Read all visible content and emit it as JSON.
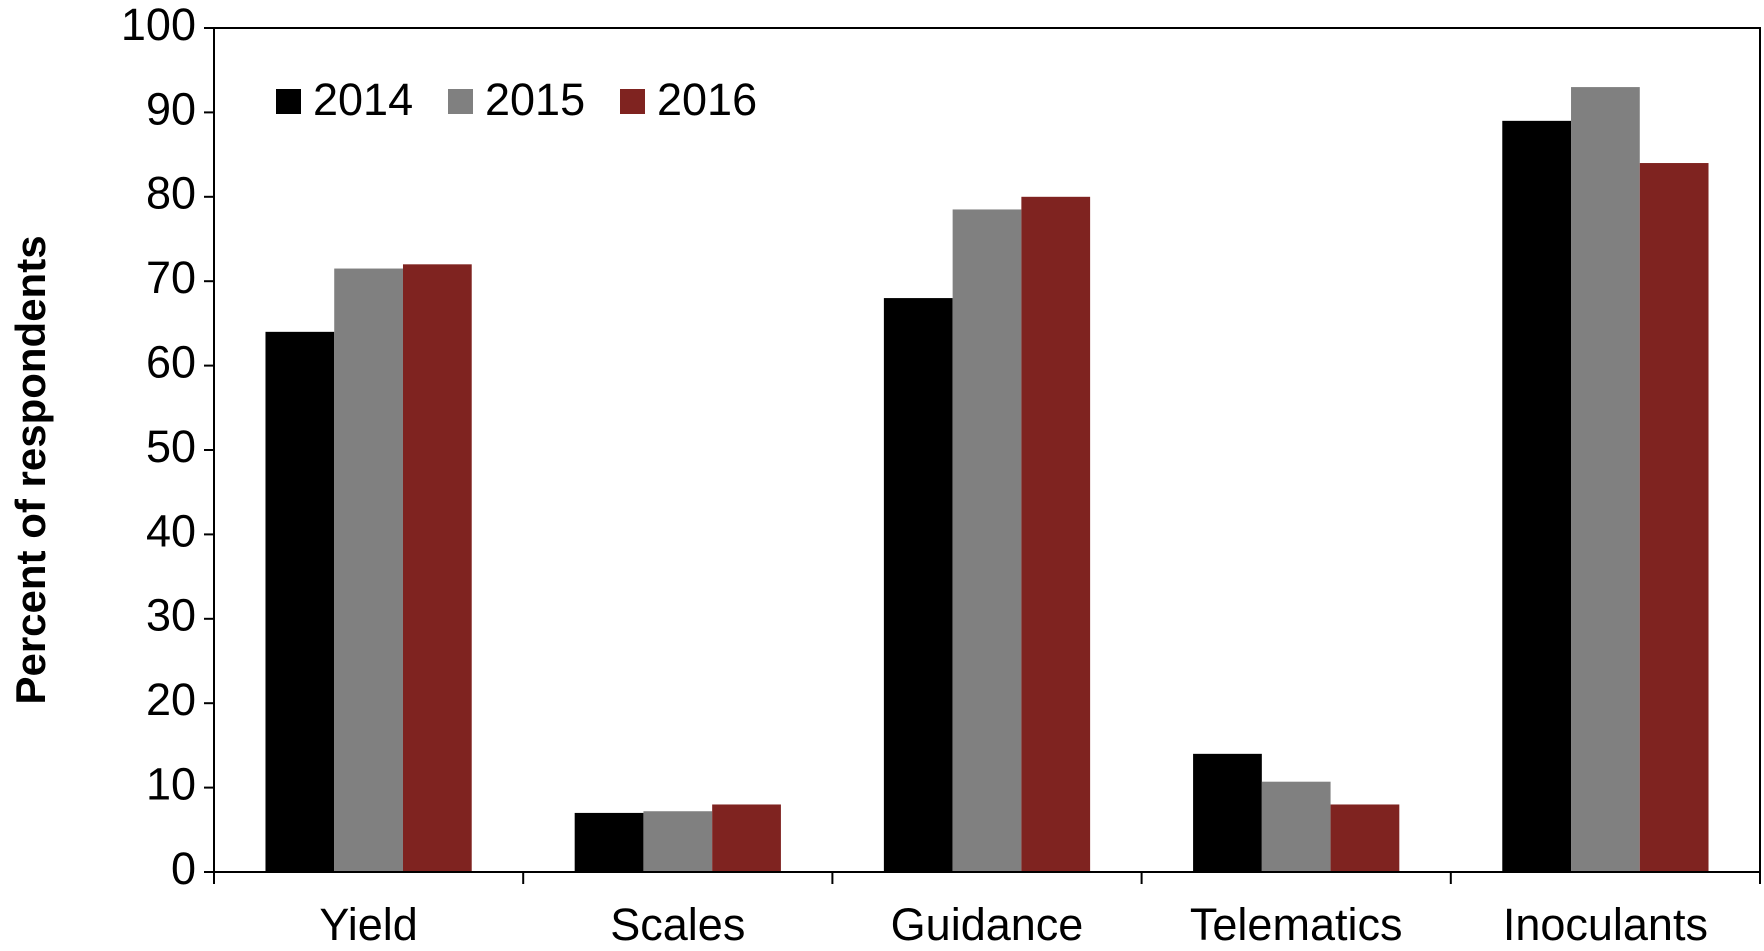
{
  "chart_data": {
    "type": "bar",
    "y_label": "Percent of respondents",
    "categories": [
      "Yield",
      "Scales",
      "Guidance",
      "Telematics",
      "Inoculants"
    ],
    "series": [
      {
        "name": "2014",
        "color": "#000000",
        "values": [
          64,
          7,
          68,
          14,
          89
        ]
      },
      {
        "name": "2015",
        "color": "#808080",
        "values": [
          71.5,
          7.2,
          78.5,
          10.7,
          93
        ]
      },
      {
        "name": "2016",
        "color": "#7f2320",
        "values": [
          72,
          8,
          80,
          8,
          84
        ]
      }
    ],
    "ylim": [
      0,
      100
    ],
    "yticks": [
      0,
      10,
      20,
      30,
      40,
      50,
      60,
      70,
      80,
      90,
      100
    ],
    "legend": "upper left",
    "grid": false
  }
}
